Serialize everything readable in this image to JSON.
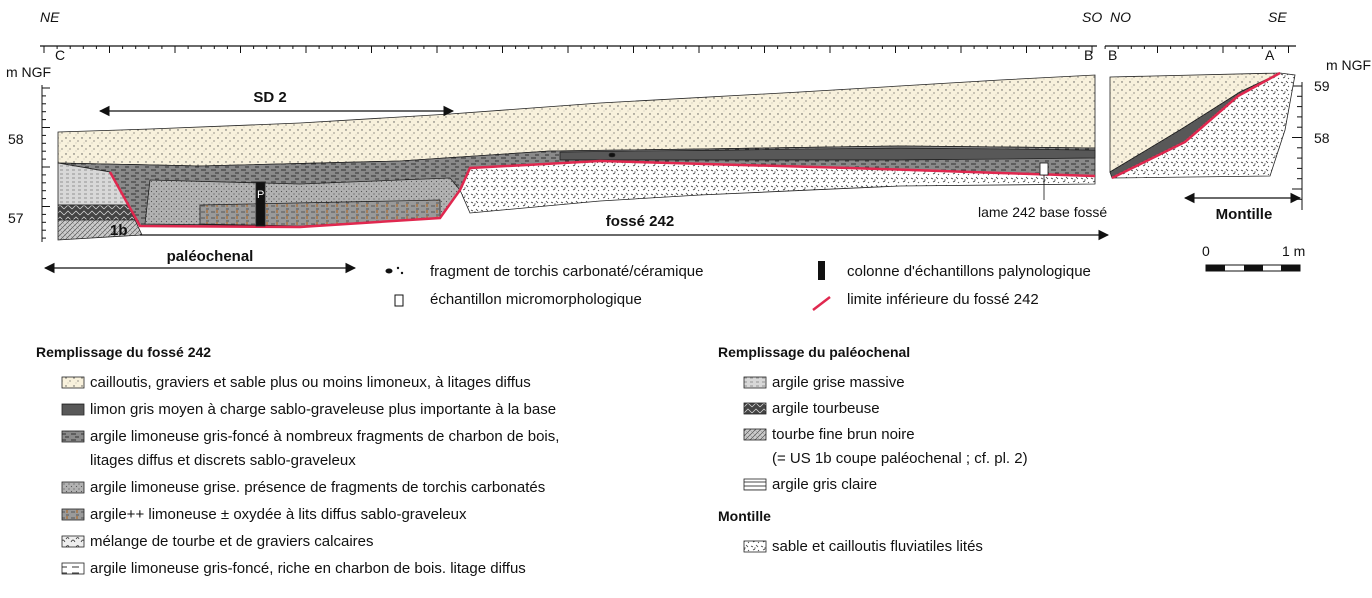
{
  "section": {
    "orientations": [
      "NE",
      "SO",
      "NO",
      "SE"
    ],
    "points": [
      "C",
      "B",
      "B",
      "A"
    ],
    "left_axis": {
      "unit": "m NGF",
      "labels": [
        "58",
        "57"
      ]
    },
    "right_axis": {
      "unit": "m NGF",
      "labels": [
        "59",
        "58"
      ]
    },
    "annotations": {
      "sd2": "SD 2",
      "fosse": "fossé 242",
      "paleochenal": "paléochenal",
      "montille": "Montille",
      "us": "1b",
      "column": "P",
      "sample": "lame 242 base fossé"
    },
    "scale": [
      "0",
      "1 m"
    ]
  },
  "symbols": [
    "fragment de torchis carbonaté/céramique",
    "colonne d'échantillons palynologique",
    "échantillon micromorphologique",
    "limite inférieure du fossé 242"
  ],
  "legend": {
    "fosse": {
      "title": "Remplissage du fossé 242",
      "items": [
        [
          "cailloutis, graviers et sable plus ou moins limoneux, à litages diffus"
        ],
        [
          "limon gris moyen à charge sablo-graveleuse plus importante à la base"
        ],
        [
          "argile limoneuse gris-foncé à nombreux fragments de charbon de bois,",
          "litages diffus et discrets sablo-graveleux"
        ],
        [
          "argile limoneuse grise. présence de fragments de torchis carbonatés"
        ],
        [
          "argile++ limoneuse ± oxydée à lits diffus sablo-graveleux"
        ],
        [
          "mélange de tourbe et de graviers calcaires"
        ],
        [
          "argile limoneuse gris-foncé, riche en charbon de bois. litage diffus"
        ]
      ]
    },
    "paleochenal": {
      "title": "Remplissage du paléochenal",
      "items": [
        [
          "argile grise massive"
        ],
        [
          "argile tourbeuse"
        ],
        [
          "tourbe fine brun noire",
          "(= US 1b coupe paléochenal ; cf. pl. 2)"
        ],
        [
          "argile gris claire"
        ]
      ]
    },
    "montille": {
      "title": "Montille",
      "items": [
        [
          "sable et cailloutis fluviatiles lités"
        ]
      ]
    }
  }
}
